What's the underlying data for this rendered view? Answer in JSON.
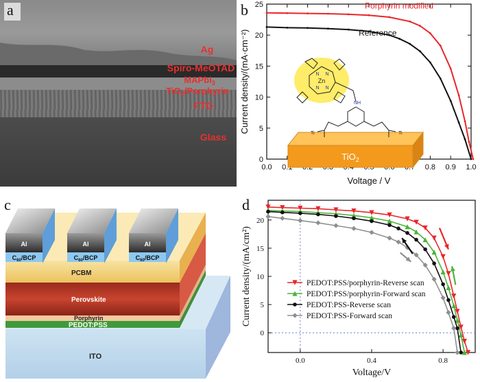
{
  "panels": {
    "a": {
      "label": "a",
      "layers": [
        {
          "name": "Ag",
          "color": "#e83030"
        },
        {
          "name": "Spiro-MeOTAD",
          "color": "#e83030"
        },
        {
          "name": "MAPbI",
          "sub": "3",
          "color": "#e83030"
        },
        {
          "name": "TiO",
          "sub": "2",
          "suffix": "/Porphyrin",
          "color": "#e83030"
        },
        {
          "name": "FTO",
          "color": "#e83030"
        },
        {
          "name": "Glass",
          "color": "#e83030"
        }
      ]
    },
    "b": {
      "label": "b"
    },
    "c": {
      "label": "c",
      "electrode_labels": [
        "Al",
        "Al",
        "Al"
      ],
      "buffer_labels": [
        "C",
        "C",
        "C"
      ],
      "buffer_sub": "60",
      "buffer_suffix": "/BCP",
      "layers": [
        "PCBM",
        "Perovskite",
        "Porphyrin",
        "PEDOT:PSS",
        "ITO"
      ]
    },
    "d": {
      "label": "d"
    }
  },
  "molecule": {
    "zn_label": "Zn",
    "n_label": "N",
    "nh_label": "NH",
    "ti_label": "Ti",
    "substrate_label": "TiO",
    "substrate_sub": "2"
  },
  "chart_data": [
    {
      "panel": "b",
      "type": "line",
      "xlabel": "Voltage / V",
      "ylabel": "Current density/(mA·cm⁻²)",
      "xlim": [
        0.0,
        1.0
      ],
      "ylim": [
        0,
        25
      ],
      "xticks": [
        "0.0",
        "0.1",
        "0.2",
        "0.3",
        "0.4",
        "0.5",
        "0.6",
        "0.7",
        "0.8",
        "0.9",
        "1.0"
      ],
      "yticks": [
        "0",
        "5",
        "10",
        "15",
        "20",
        "25"
      ],
      "series": [
        {
          "name": "Porphyrin modified",
          "color": "#e8262a",
          "x": [
            0.0,
            0.1,
            0.2,
            0.3,
            0.4,
            0.5,
            0.6,
            0.7,
            0.75,
            0.8,
            0.85,
            0.9,
            0.94,
            0.97,
            0.99,
            1.01
          ],
          "y": [
            23.6,
            23.55,
            23.5,
            23.45,
            23.35,
            23.2,
            22.9,
            22.2,
            21.5,
            20.3,
            18.3,
            14.6,
            10.3,
            6.1,
            2.8,
            0.0
          ]
        },
        {
          "name": "Reference",
          "color": "#111111",
          "x": [
            0.0,
            0.1,
            0.2,
            0.3,
            0.4,
            0.5,
            0.6,
            0.65,
            0.7,
            0.75,
            0.8,
            0.85,
            0.9,
            0.94,
            0.97,
            1.0
          ],
          "y": [
            21.3,
            21.2,
            21.15,
            21.05,
            20.9,
            20.6,
            20.0,
            19.4,
            18.6,
            17.4,
            15.6,
            13.0,
            9.4,
            5.9,
            3.2,
            0.0
          ]
        }
      ]
    },
    {
      "panel": "d",
      "type": "line",
      "xlabel": "Voltage/V",
      "ylabel": "Current density/(mA/cm²)",
      "xlim": [
        -0.18,
        0.98
      ],
      "ylim": [
        -3.5,
        23.5
      ],
      "xticks": [
        "0.0",
        "0.4",
        "0.8"
      ],
      "yticks": [
        "0",
        "5",
        "10",
        "15",
        "20"
      ],
      "series": [
        {
          "name": "PEDOT:PSS/porphyrin-Reverse scan",
          "color": "#e8262a",
          "marker": "triangle-down",
          "x": [
            -0.18,
            -0.1,
            0.0,
            0.1,
            0.2,
            0.3,
            0.4,
            0.5,
            0.6,
            0.65,
            0.7,
            0.75,
            0.8,
            0.83,
            0.86,
            0.88,
            0.9,
            0.92,
            0.94
          ],
          "y": [
            22.3,
            22.2,
            22.1,
            22.0,
            21.8,
            21.6,
            21.3,
            20.9,
            20.2,
            19.6,
            18.6,
            16.8,
            13.5,
            10.5,
            6.5,
            3.8,
            1.0,
            -1.5,
            -3.5
          ]
        },
        {
          "name": "PEDOT:PSS/porphyrin-Forward scan",
          "color": "#4db33a",
          "marker": "triangle-up",
          "x": [
            -0.18,
            -0.1,
            0.0,
            0.1,
            0.2,
            0.3,
            0.4,
            0.5,
            0.6,
            0.65,
            0.7,
            0.75,
            0.8,
            0.83,
            0.86,
            0.88,
            0.9,
            0.92
          ],
          "y": [
            21.7,
            21.6,
            21.5,
            21.3,
            21.1,
            20.8,
            20.4,
            19.8,
            18.8,
            17.9,
            16.5,
            14.3,
            10.8,
            8.0,
            4.8,
            2.2,
            -0.4,
            -3.5
          ]
        },
        {
          "name": "PEDOT:PSS-Reverse scan",
          "color": "#111111",
          "marker": "circle",
          "x": [
            -0.18,
            -0.1,
            0.0,
            0.1,
            0.2,
            0.3,
            0.4,
            0.5,
            0.55,
            0.6,
            0.65,
            0.7,
            0.75,
            0.8,
            0.83,
            0.86,
            0.88,
            0.9
          ],
          "y": [
            21.5,
            21.35,
            21.2,
            21.0,
            20.7,
            20.3,
            19.8,
            19.1,
            18.5,
            17.7,
            16.5,
            14.8,
            12.3,
            8.6,
            5.8,
            2.8,
            0.8,
            -3.5
          ]
        },
        {
          "name": "PEDOT:PSS-Forward scan",
          "color": "#8f8f8f",
          "marker": "diamond",
          "x": [
            -0.18,
            -0.1,
            0.0,
            0.1,
            0.2,
            0.3,
            0.4,
            0.5,
            0.55,
            0.6,
            0.65,
            0.7,
            0.75,
            0.8,
            0.83,
            0.86,
            0.88
          ],
          "y": [
            20.6,
            20.3,
            19.9,
            19.5,
            19.0,
            18.5,
            17.8,
            16.8,
            16.1,
            15.1,
            13.8,
            12.0,
            9.5,
            6.2,
            3.6,
            0.8,
            -3.5
          ]
        }
      ]
    }
  ]
}
